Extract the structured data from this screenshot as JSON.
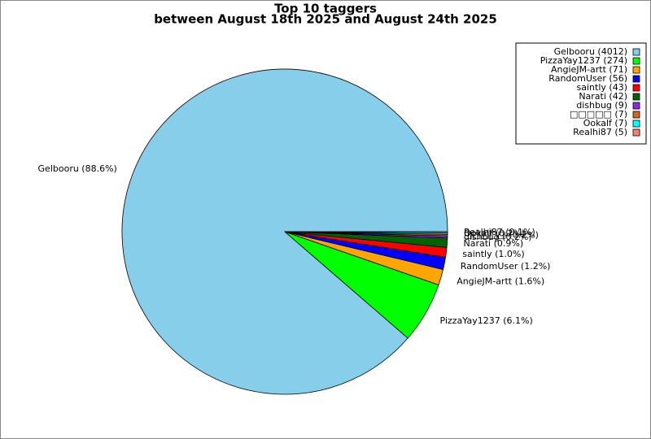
{
  "chart_data": {
    "type": "pie",
    "title": [
      "Top 10 taggers",
      "between August 18th 2025 and August 24th 2025"
    ],
    "categories": [
      "Gelbooru (4012)",
      "PizzaYay1237 (274)",
      "AngieJM-artt (71)",
      "RandomUser (56)",
      "saintly (43)",
      "Narati (42)",
      "dishbug (9)",
      "□□□□□ (7)",
      "Ookalf (7)",
      "Realhi87 (5)"
    ],
    "values": [
      4012,
      274,
      71,
      56,
      43,
      42,
      9,
      7,
      7,
      5
    ],
    "slice_labels": [
      "Gelbooru (88.6%)",
      "PizzaYay1237 (6.1%)",
      "AngieJM-artt (1.6%)",
      "RandomUser (1.2%)",
      "saintly (1.0%)",
      "Narati (0.9%)",
      "dishbug (0.2%)",
      "□□□□□ (0.2%)",
      "Ookalf (0.2%)",
      "Realhi87 (0.1%)"
    ],
    "colors": [
      "#87ceeb",
      "#00ff00",
      "#ffa500",
      "#0000ff",
      "#ff0000",
      "#006400",
      "#8a2be2",
      "#d2691e",
      "#00ffff",
      "#fa8072"
    ],
    "legend": "upper right"
  }
}
